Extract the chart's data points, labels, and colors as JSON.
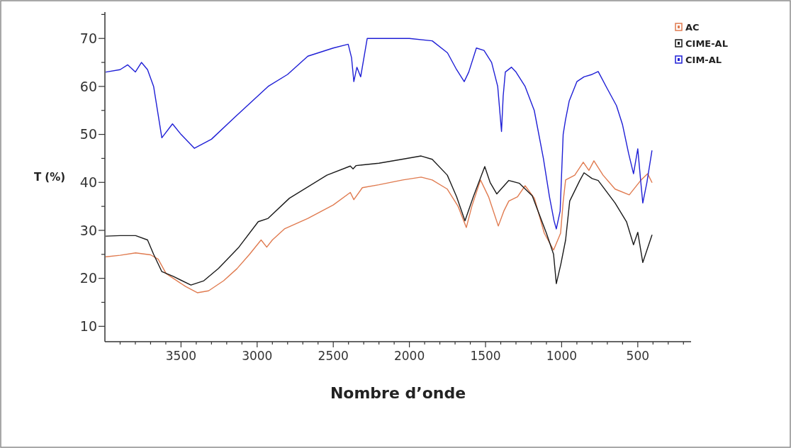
{
  "chart_data": {
    "type": "line",
    "xlabel": "Nombre d’onde",
    "ylabel": "T (%)",
    "xlim": [
      4000,
      150
    ],
    "ylim": [
      6.8,
      75.5
    ],
    "xticks": [
      {
        "value": 3900,
        "label": null
      },
      {
        "value": 3800,
        "label": null
      },
      {
        "value": 3700,
        "label": null
      },
      {
        "value": 3600,
        "label": null
      },
      3500,
      {
        "value": 3400,
        "label": null
      },
      {
        "value": 3300,
        "label": null
      },
      {
        "value": 3200,
        "label": null
      },
      {
        "value": 3100,
        "label": null
      },
      3000,
      {
        "value": 2900,
        "label": null
      },
      {
        "value": 2800,
        "label": null
      },
      {
        "value": 2700,
        "label": null
      },
      {
        "value": 2600,
        "label": null
      },
      2500,
      {
        "value": 2400,
        "label": null
      },
      {
        "value": 2300,
        "label": null
      },
      {
        "value": 2200,
        "label": null
      },
      {
        "value": 2100,
        "label": null
      },
      2000,
      {
        "value": 1900,
        "label": null
      },
      {
        "value": 1800,
        "label": null
      },
      {
        "value": 1700,
        "label": null
      },
      {
        "value": 1600,
        "label": null
      },
      1500,
      {
        "value": 1400,
        "label": null
      },
      {
        "value": 1300,
        "label": null
      },
      {
        "value": 1200,
        "label": null
      },
      {
        "value": 1100,
        "label": null
      },
      1000,
      {
        "value": 900,
        "label": null
      },
      {
        "value": 800,
        "label": null
      },
      {
        "value": 700,
        "label": null
      },
      {
        "value": 600,
        "label": null
      },
      500,
      {
        "value": 400,
        "label": null
      },
      {
        "value": 300,
        "label": null
      },
      {
        "value": 200,
        "label": null
      }
    ],
    "yticks": [
      10,
      {
        "value": 15,
        "label": null
      },
      20,
      {
        "value": 25,
        "label": null
      },
      30,
      {
        "value": 35,
        "label": null
      },
      40,
      {
        "value": 45,
        "label": null
      },
      50,
      {
        "value": 55,
        "label": null
      },
      60,
      {
        "value": 65,
        "label": null
      },
      70,
      {
        "value": 75,
        "label": null
      }
    ],
    "grid": false,
    "legend": "top right",
    "marker": "none",
    "line_style": "solid",
    "series": [
      {
        "name": "AC",
        "color": "#e07b50",
        "x": [
          3993,
          3900,
          3798,
          3700,
          3650,
          3598,
          3551,
          3470,
          3393,
          3319,
          3220,
          3133,
          3050,
          2974,
          2937,
          2900,
          2821,
          2667,
          2500,
          2388,
          2365,
          2309,
          2200,
          2044,
          1923,
          1850,
          1751,
          1680,
          1626,
          1590,
          1533,
          1480,
          1416,
          1380,
          1347,
          1290,
          1240,
          1179,
          1114,
          1053,
          1007,
          990,
          974,
          914,
          858,
          821,
          788,
          728,
          649,
          556,
          481,
          435,
          407
        ],
        "values": [
          24.5,
          24.8,
          25.3,
          24.9,
          24,
          21,
          20,
          18.3,
          17,
          17.4,
          19.5,
          22,
          25,
          28,
          26.5,
          28,
          30.3,
          32.5,
          35.3,
          37.9,
          36.4,
          38.9,
          39.5,
          40.5,
          41.1,
          40.5,
          38.6,
          35,
          30.6,
          35,
          40.5,
          37,
          30.9,
          34,
          36.1,
          37,
          39.3,
          36.7,
          29.4,
          25.9,
          29.4,
          36,
          40.5,
          41.5,
          44.2,
          42.5,
          44.5,
          41.5,
          38.6,
          37.4,
          40.4,
          41.8,
          40
        ]
      },
      {
        "name": "CIME-AL",
        "color": "#1a1a1a",
        "x": [
          3993,
          3900,
          3798,
          3720,
          3680,
          3626,
          3551,
          3435,
          3350,
          3253,
          3120,
          2993,
          2928,
          2788,
          2542,
          2388,
          2370,
          2350,
          2200,
          2050,
          1923,
          1850,
          1751,
          1690,
          1635,
          1580,
          1505,
          1470,
          1426,
          1347,
          1277,
          1193,
          1100,
          1053,
          1035,
          1005,
          974,
          947,
          881,
          853,
          800,
          760,
          649,
          574,
          528,
          500,
          467,
          407
        ],
        "values": [
          28.8,
          28.9,
          28.9,
          28,
          25,
          21.4,
          20.4,
          18.6,
          19.5,
          22.1,
          26.5,
          31.8,
          32.5,
          36.7,
          41.5,
          43.4,
          42.8,
          43.5,
          44,
          44.8,
          45.5,
          44.8,
          41.5,
          37,
          32,
          37,
          43.3,
          40,
          37.6,
          40.4,
          39.8,
          37.2,
          29.4,
          25,
          18.9,
          23,
          28,
          36.1,
          40.4,
          42,
          40.8,
          40.4,
          35.7,
          31.8,
          27,
          29.6,
          23.3,
          29
        ]
      },
      {
        "name": "CIM-AL",
        "color": "#1f1fd6",
        "x": [
          3993,
          3900,
          3850,
          3800,
          3760,
          3720,
          3680,
          3626,
          3556,
          3500,
          3412,
          3300,
          3150,
          2928,
          2800,
          2667,
          2500,
          2402,
          2380,
          2365,
          2345,
          2320,
          2277,
          2200,
          2000,
          1850,
          1750,
          1690,
          1640,
          1610,
          1560,
          1510,
          1460,
          1420,
          1395,
          1384,
          1370,
          1330,
          1300,
          1240,
          1180,
          1120,
          1080,
          1050,
          1035,
          1010,
          990,
          975,
          950,
          900,
          853,
          800,
          760,
          700,
          640,
          600,
          560,
          528,
          500,
          480,
          467,
          440,
          407
        ],
        "values": [
          63,
          63.5,
          64.5,
          63,
          65,
          63.5,
          60,
          49.3,
          52.2,
          50,
          47.1,
          49,
          53.5,
          60,
          62.5,
          66.3,
          68,
          68.8,
          66,
          61,
          64,
          62,
          70,
          70,
          70,
          69.5,
          67,
          63.5,
          61,
          63,
          68,
          67.5,
          65,
          60,
          50.6,
          58,
          63,
          64,
          63,
          60,
          55,
          45,
          37,
          32,
          30.3,
          34,
          50,
          53,
          57,
          61,
          62,
          62.5,
          63.1,
          59.5,
          56,
          52,
          46,
          41.8,
          47,
          40,
          35.7,
          40,
          46.6
        ]
      }
    ]
  }
}
